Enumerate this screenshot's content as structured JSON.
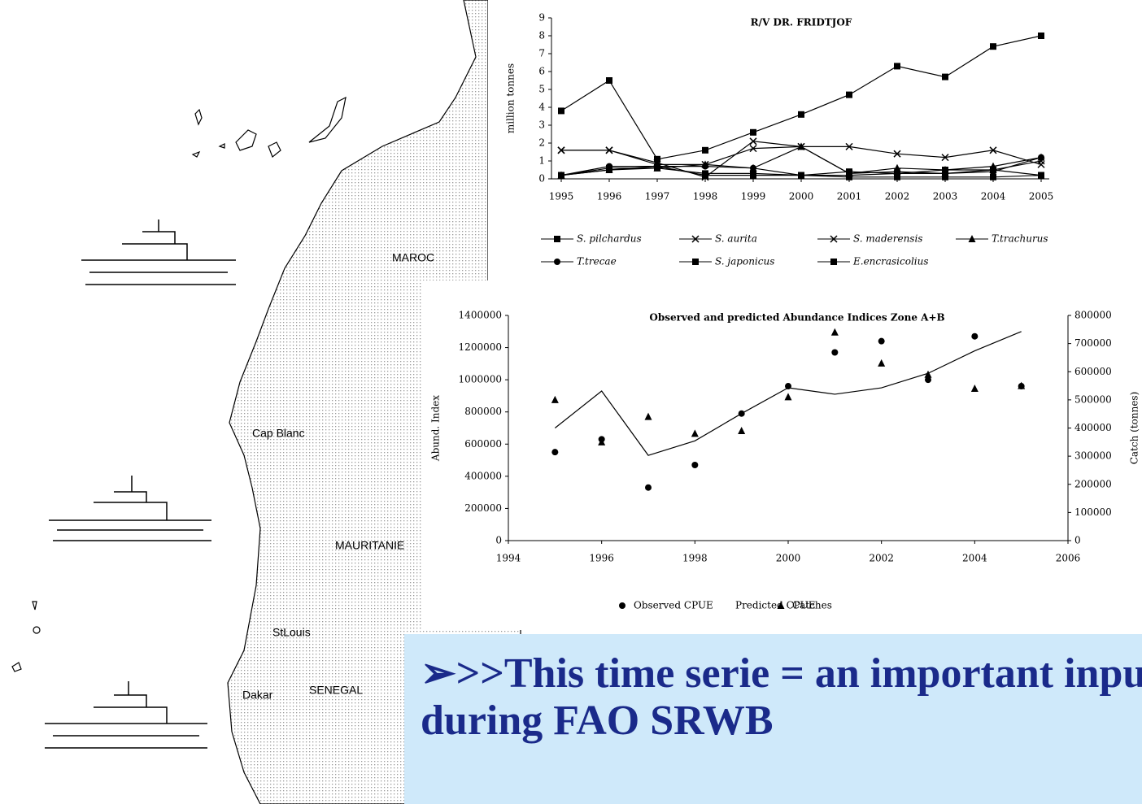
{
  "map": {
    "labels": [
      "MAROC",
      "Cap Blanc",
      "MAURITANIE",
      "StLouis",
      "Dakar",
      "SENEGAL"
    ]
  },
  "chart_data": [
    {
      "type": "line",
      "title": "R/V DR. FRIDTJOF",
      "y_label": "million tonnes",
      "x": [
        1995,
        1996,
        1997,
        1998,
        1999,
        2000,
        2001,
        2002,
        2003,
        2004,
        2005
      ],
      "xlim": [
        1995,
        2005
      ],
      "xticks": [
        1995,
        1996,
        1997,
        1998,
        1999,
        2000,
        2001,
        2002,
        2003,
        2004,
        2005
      ],
      "ylim": [
        0,
        9
      ],
      "yticks": [
        0,
        1,
        2,
        3,
        4,
        5,
        6,
        7,
        8,
        9
      ],
      "series": [
        {
          "name": "S. pilchardus",
          "color": "#000000",
          "marker": "square",
          "values": [
            3.8,
            5.5,
            1.1,
            1.6,
            2.6,
            3.6,
            4.7,
            6.3,
            5.7,
            7.4,
            8.0
          ]
        },
        {
          "name": "S. aurita",
          "color": "#000000",
          "marker": "x",
          "values": [
            1.6,
            1.6,
            0.8,
            0.8,
            1.7,
            1.8,
            0.3,
            0.4,
            0.3,
            0.5,
            1.0
          ]
        },
        {
          "name": "S. maderensis",
          "color": "#000000",
          "marker": "x",
          "values": [
            1.6,
            1.6,
            0.9,
            0.1,
            2.1,
            1.8,
            1.8,
            1.4,
            1.2,
            1.6,
            0.8
          ]
        },
        {
          "name": "T.trachurus",
          "color": "#000000",
          "marker": "triangle",
          "values": [
            0.2,
            0.5,
            0.6,
            0.8,
            0.6,
            1.8,
            0.3,
            0.6,
            0.5,
            0.7,
            1.2
          ]
        },
        {
          "name": "T.trecae",
          "color": "#000000",
          "marker": "circle",
          "values": [
            0.2,
            0.7,
            0.7,
            0.7,
            0.6,
            0.2,
            0.2,
            0.3,
            0.3,
            0.4,
            1.2
          ]
        },
        {
          "name": "S. japonicus",
          "color": "#000000",
          "marker": "square",
          "values": [
            0.2,
            0.6,
            0.6,
            0.3,
            0.3,
            0.2,
            0.4,
            0.3,
            0.5,
            0.5,
            0.2
          ]
        },
        {
          "name": "E.encrasicolius",
          "color": "#000000",
          "marker": "square",
          "values": [
            0.2,
            0.5,
            0.7,
            0.2,
            0.2,
            0.2,
            0.1,
            0.1,
            0.1,
            0.1,
            0.2
          ]
        }
      ]
    },
    {
      "type": "line",
      "title": "Observed and predicted Abundance Indices   Zone A+B",
      "y_label": "Abund. Index",
      "y2_label": "Catch (tonnes)",
      "x": [
        1995,
        1996,
        1997,
        1998,
        1999,
        2000,
        2001,
        2002,
        2003,
        2004,
        2005
      ],
      "xlim": [
        1994,
        2006
      ],
      "xticks": [
        1994,
        1996,
        1998,
        2000,
        2002,
        2004,
        2006
      ],
      "ylim": [
        0,
        1400000
      ],
      "yticks": [
        0,
        200000,
        400000,
        600000,
        800000,
        1000000,
        1200000,
        1400000
      ],
      "y2lim": [
        0,
        800000
      ],
      "y2ticks": [
        0,
        100000,
        200000,
        300000,
        400000,
        500000,
        600000,
        700000,
        800000
      ],
      "series": [
        {
          "name": "Observed CPUE",
          "color": "#000000",
          "marker": "circle",
          "line": false,
          "values": [
            550000,
            630000,
            330000,
            470000,
            790000,
            960000,
            1170000,
            1240000,
            1000000,
            1270000,
            960000
          ]
        },
        {
          "name": "Predicted CPUE",
          "color": "#000000",
          "marker": "none",
          "line": true,
          "values": [
            700000,
            930000,
            530000,
            620000,
            790000,
            950000,
            910000,
            950000,
            1040000,
            1180000,
            1300000
          ]
        },
        {
          "name": "Catches",
          "color": "#000000",
          "marker": "triangle",
          "line": false,
          "axis": "y2",
          "values": [
            500000,
            350000,
            440000,
            380000,
            390000,
            510000,
            740000,
            630000,
            590000,
            540000,
            550000
          ]
        }
      ]
    }
  ],
  "callout": {
    "text": ">>This time serie  = an important input during FAO SRWB"
  }
}
